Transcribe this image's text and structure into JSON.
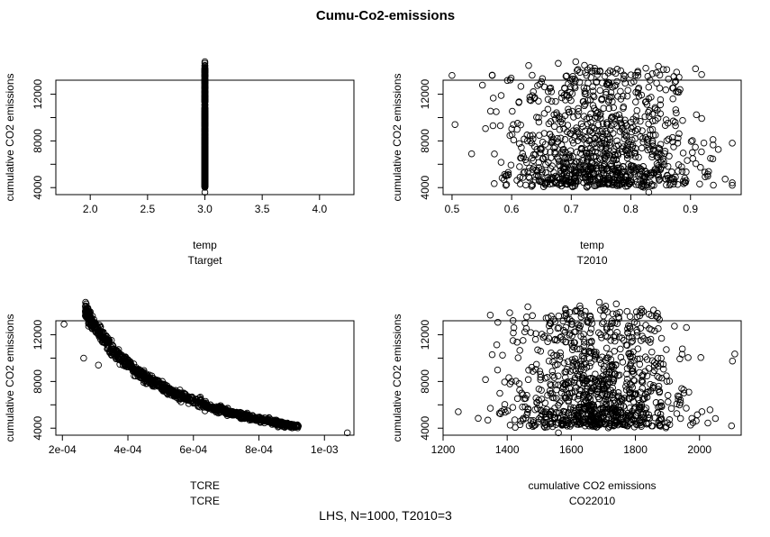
{
  "title": "Cumu-Co2-emissions",
  "subtitle": "LHS, N=1000, T2010=3",
  "chart_data": [
    {
      "type": "scatter",
      "ylabel": "cumulative CO2 emissions",
      "xlabel": "temp",
      "xlabel2": "Ttarget",
      "xlim": [
        1.7,
        4.3
      ],
      "ylim": [
        3400,
        13200
      ],
      "xticks": [
        2.0,
        2.5,
        3.0,
        3.5,
        4.0
      ],
      "xtick_labels": [
        "2.0",
        "2.5",
        "3.0",
        "3.5",
        "4.0"
      ],
      "yticks": [
        4000,
        8000,
        12000
      ],
      "ytick_labels": [
        "4000",
        "8000",
        "12000"
      ],
      "yticks_minor": [
        6000,
        10000
      ],
      "points_described": "1000 points; x constant at 3.0, y mostly 4000-7000, max near 12900"
    },
    {
      "type": "scatter",
      "ylabel": "cumulative CO2 emissions",
      "xlabel": "temp",
      "xlabel2": "T2010",
      "xlim": [
        0.485,
        0.985
      ],
      "ylim": [
        3400,
        13200
      ],
      "xticks": [
        0.5,
        0.6,
        0.7,
        0.8,
        0.9
      ],
      "xtick_labels": [
        "0.5",
        "0.6",
        "0.7",
        "0.8",
        "0.9"
      ],
      "yticks": [
        4000,
        8000,
        12000
      ],
      "ytick_labels": [
        "4000",
        "8000",
        "12000"
      ],
      "yticks_minor": [
        6000,
        10000
      ],
      "points_described": "1000 points; x spread 0.5-0.97 centered ~0.75, y mostly 4000-7000"
    },
    {
      "type": "scatter",
      "ylabel": "cumulative CO2 emissions",
      "xlabel": "TCRE",
      "xlabel2": "TCRE",
      "xlim": [
        0.00018,
        0.00109
      ],
      "ylim": [
        3400,
        13200
      ],
      "xticks": [
        0.0002,
        0.0004,
        0.0006,
        0.0008,
        0.001
      ],
      "xtick_labels": [
        "2e-04",
        "4e-04",
        "6e-04",
        "8e-04",
        "1e-03"
      ],
      "yticks": [
        4000,
        8000,
        12000
      ],
      "ytick_labels": [
        "4000",
        "8000",
        "12000"
      ],
      "yticks_minor": [
        6000,
        10000
      ],
      "points_described": "1000 points on a decreasing curve y ≈ 3.8/x, from (2e-04, 12900) to (1.07e-03, 3600)"
    },
    {
      "type": "scatter",
      "ylabel": "cumulative CO2 emissions",
      "xlabel": "cumulative CO2 emissions",
      "xlabel2": "CO22010",
      "xlim": [
        1200,
        2130
      ],
      "ylim": [
        3400,
        13200
      ],
      "xticks": [
        1200,
        1400,
        1600,
        1800,
        2000
      ],
      "xtick_labels": [
        "1200",
        "1400",
        "1600",
        "1800",
        "2000"
      ],
      "yticks": [
        4000,
        8000,
        12000
      ],
      "ytick_labels": [
        "4000",
        "8000",
        "12000"
      ],
      "yticks_minor": [
        6000,
        10000
      ],
      "points_described": "1000 points; x spread 1220-2110 centered ~1680, y mostly 4000-7000"
    }
  ]
}
